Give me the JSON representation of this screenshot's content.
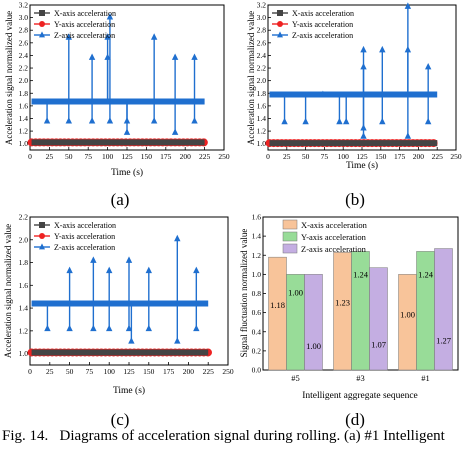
{
  "caption": {
    "label": "Fig. 14.",
    "text": "Diagrams of acceleration signal during rolling. (a) #1 Intelligent"
  },
  "chart_data": [
    {
      "type": "line",
      "panel_label": "(a)",
      "xlabel": "Time (s)",
      "ylabel": "Acceleration signal normalized value",
      "xlim": [
        0,
        250
      ],
      "ylim": [
        0.9,
        3.2
      ],
      "xticks": [
        "0",
        "25",
        "50",
        "75",
        "100",
        "125",
        "150",
        "175",
        "200",
        "225",
        "250"
      ],
      "yticks": [
        "1.0",
        "1.2",
        "1.4",
        "1.6",
        "1.8",
        "2.0",
        "2.2",
        "2.4",
        "2.6",
        "2.8",
        "3.0",
        "3.2"
      ],
      "legend_position": "top-left",
      "series": [
        {
          "name": "X-axis acceleration",
          "color": "#444444",
          "marker": "square",
          "baseline": 1.02
        },
        {
          "name": "Y-axis acceleration",
          "color": "#ee2222",
          "marker": "circle",
          "baseline": 1.02
        },
        {
          "name": "Z-axis acceleration",
          "color": "#1f6fcf",
          "marker": "triangle",
          "baseline": 1.67,
          "spikes": [
            {
              "x": 22,
              "y": 1.36
            },
            {
              "x": 50,
              "y": 2.69
            },
            {
              "x": 50,
              "y": 1.36
            },
            {
              "x": 80,
              "y": 2.37
            },
            {
              "x": 80,
              "y": 1.36
            },
            {
              "x": 100,
              "y": 2.69
            },
            {
              "x": 100,
              "y": 2.37
            },
            {
              "x": 103,
              "y": 3.01
            },
            {
              "x": 103,
              "y": 1.36
            },
            {
              "x": 125,
              "y": 1.36
            },
            {
              "x": 125,
              "y": 1.18
            },
            {
              "x": 160,
              "y": 2.69
            },
            {
              "x": 160,
              "y": 1.36
            },
            {
              "x": 187,
              "y": 2.37
            },
            {
              "x": 187,
              "y": 1.18
            },
            {
              "x": 212,
              "y": 2.37
            },
            {
              "x": 212,
              "y": 1.36
            }
          ]
        }
      ]
    },
    {
      "type": "line",
      "panel_label": "(b)",
      "xlabel": "Time (s)",
      "ylabel": "Acceleration signal normalized value",
      "xlim": [
        0,
        250
      ],
      "ylim": [
        0.9,
        3.2
      ],
      "xticks": [
        "0",
        "25",
        "50",
        "75",
        "100",
        "125",
        "150",
        "175",
        "200",
        "225",
        "250"
      ],
      "yticks": [
        "1.0",
        "1.2",
        "1.4",
        "1.6",
        "1.8",
        "2.0",
        "2.2",
        "2.4",
        "2.6",
        "2.8",
        "3.0",
        "3.2"
      ],
      "legend_position": "top-left",
      "series": [
        {
          "name": "X-axis acceleration",
          "color": "#444444",
          "marker": "square",
          "baseline": 1.01
        },
        {
          "name": "Y-axis acceleration",
          "color": "#ee2222",
          "marker": "circle",
          "baseline": 1.01
        },
        {
          "name": "Z-axis acceleration",
          "color": "#1f6fcf",
          "marker": "triangle",
          "baseline": 1.78,
          "spikes": [
            {
              "x": 22,
              "y": 1.35
            },
            {
              "x": 50,
              "y": 1.35
            },
            {
              "x": 73,
              "y": 1.78
            },
            {
              "x": 95,
              "y": 1.35
            },
            {
              "x": 104,
              "y": 1.35
            },
            {
              "x": 127,
              "y": 2.49
            },
            {
              "x": 127,
              "y": 2.22
            },
            {
              "x": 127,
              "y": 1.25
            },
            {
              "x": 127,
              "y": 1.12
            },
            {
              "x": 152,
              "y": 2.49
            },
            {
              "x": 152,
              "y": 1.35
            },
            {
              "x": 186,
              "y": 3.18
            },
            {
              "x": 186,
              "y": 2.49
            },
            {
              "x": 186,
              "y": 1.12
            },
            {
              "x": 213,
              "y": 2.22
            },
            {
              "x": 213,
              "y": 1.35
            }
          ]
        }
      ]
    },
    {
      "type": "line",
      "panel_label": "(c)",
      "xlabel": "Time (s)",
      "ylabel": "Acceleration signal normalized value",
      "xlim": [
        0,
        250
      ],
      "ylim": [
        0.9,
        2.2
      ],
      "xticks": [
        "0",
        "25",
        "50",
        "75",
        "100",
        "125",
        "150",
        "175",
        "200",
        "225",
        "250"
      ],
      "yticks": [
        "1.0",
        "1.2",
        "1.4",
        "1.6",
        "1.8",
        "2.0",
        "2.2"
      ],
      "legend_position": "top-left",
      "series": [
        {
          "name": "X-axis acceleration",
          "color": "#444444",
          "marker": "square",
          "baseline": 1.01
        },
        {
          "name": "Y-axis acceleration",
          "color": "#ee2222",
          "marker": "circle",
          "baseline": 1.01
        },
        {
          "name": "Z-axis acceleration",
          "color": "#1f6fcf",
          "marker": "triangle",
          "baseline": 1.44,
          "spikes": [
            {
              "x": 22,
              "y": 1.22
            },
            {
              "x": 50,
              "y": 1.73
            },
            {
              "x": 50,
              "y": 1.22
            },
            {
              "x": 80,
              "y": 1.82
            },
            {
              "x": 80,
              "y": 1.22
            },
            {
              "x": 100,
              "y": 1.73
            },
            {
              "x": 100,
              "y": 1.22
            },
            {
              "x": 125,
              "y": 1.82
            },
            {
              "x": 125,
              "y": 1.22
            },
            {
              "x": 128,
              "y": 1.11
            },
            {
              "x": 150,
              "y": 1.73
            },
            {
              "x": 150,
              "y": 1.22
            },
            {
              "x": 186,
              "y": 2.01
            },
            {
              "x": 186,
              "y": 1.11
            },
            {
              "x": 210,
              "y": 1.73
            },
            {
              "x": 210,
              "y": 1.22
            }
          ]
        }
      ]
    },
    {
      "type": "bar",
      "panel_label": "(d)",
      "xlabel": "Intelligent aggregate sequence",
      "ylabel": "Signal fluctuation normalized value",
      "ylim": [
        0.0,
        1.6
      ],
      "yticks": [
        "0.0",
        "0.2",
        "0.4",
        "0.6",
        "0.8",
        "1.0",
        "1.2",
        "1.4",
        "1.6"
      ],
      "categories": [
        "#5",
        "#3",
        "#1"
      ],
      "legend_position": "top-right",
      "series": [
        {
          "name": "X-axis acceleration",
          "color": "#f8c49a",
          "values": [
            1.18,
            1.23,
            1.0
          ],
          "labels": [
            "1.18",
            "1.23",
            "1.00"
          ]
        },
        {
          "name": "Y-axis acceleration",
          "color": "#98dc98",
          "values": [
            1.0,
            1.24,
            1.24
          ],
          "labels": [
            "1.00",
            "1.24",
            "1.24"
          ]
        },
        {
          "name": "Z-axis acceleration",
          "color": "#c4aee2",
          "values": [
            1.0,
            1.07,
            1.27
          ],
          "labels": [
            "1.00",
            "1.07",
            "1.27"
          ]
        }
      ]
    }
  ]
}
